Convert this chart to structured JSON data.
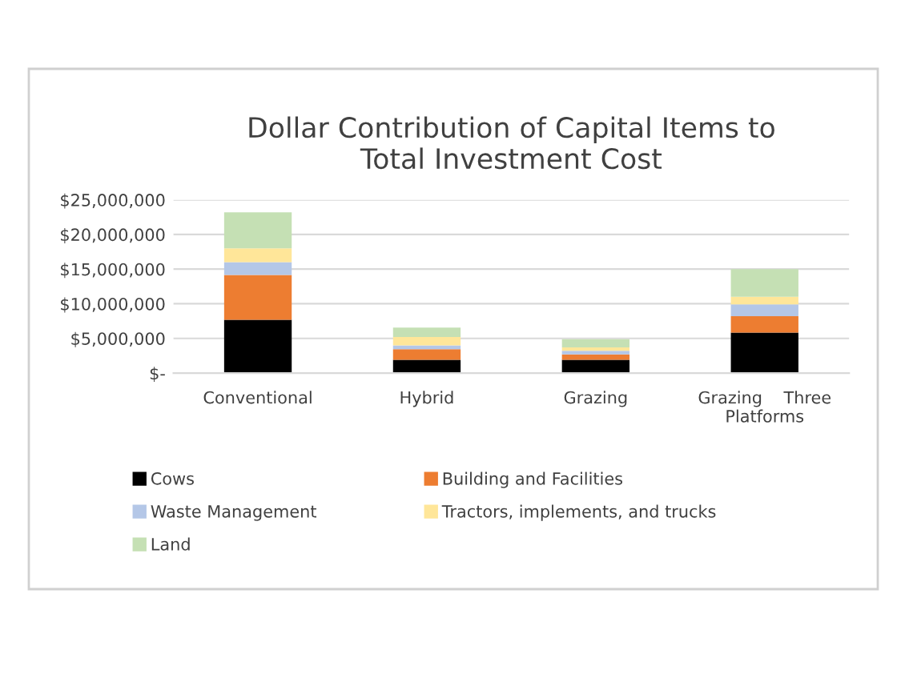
{
  "chart_data": {
    "type": "bar",
    "stacked": true,
    "title": "Dollar Contribution of Capital Items to\nTotal Investment Cost",
    "categories": [
      "Conventional",
      "Hybrid",
      "Grazing",
      "Grazing    Three\nPlatforms"
    ],
    "series": [
      {
        "name": "Cows",
        "color": "#000000",
        "values": [
          7700000,
          1900000,
          1900000,
          5850000
        ]
      },
      {
        "name": "Building and Facilities",
        "color": "#ed7d31",
        "values": [
          6450000,
          1550000,
          800000,
          2350000
        ]
      },
      {
        "name": "Waste Management",
        "color": "#b4c7e7",
        "values": [
          1850000,
          550000,
          500000,
          1700000
        ]
      },
      {
        "name": "Tractors, implements, and trucks",
        "color": "#ffe699",
        "values": [
          2000000,
          1200000,
          500000,
          1100000
        ]
      },
      {
        "name": "Land",
        "color": "#c5e0b4",
        "values": [
          5200000,
          1350000,
          1200000,
          4000000
        ]
      }
    ],
    "ylim": [
      0,
      25000000
    ],
    "yticks": [
      {
        "value": 0,
        "label": "$-"
      },
      {
        "value": 5000000,
        "label": "$5,000,000"
      },
      {
        "value": 10000000,
        "label": "$10,000,000"
      },
      {
        "value": 15000000,
        "label": "$15,000,000"
      },
      {
        "value": 20000000,
        "label": "$20,000,000"
      },
      {
        "value": 25000000,
        "label": "$25,000,000"
      }
    ],
    "grid": "y",
    "legend": "bottom"
  }
}
